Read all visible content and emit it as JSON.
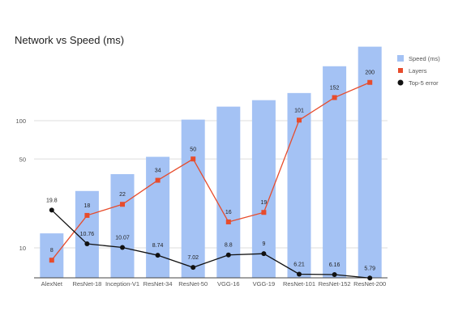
{
  "chart_data": {
    "type": "bar",
    "title": "Network vs Speed (ms)",
    "categories": [
      "AlexNet",
      "ResNet-18",
      "Inception-V1",
      "ResNet-34",
      "ResNet-50",
      "VGG-16",
      "VGG-19",
      "ResNet-101",
      "ResNet-152",
      "ResNet-200"
    ],
    "y_scale": "log",
    "yticks": [
      10,
      50,
      100
    ],
    "grid": true,
    "legend_position": "right",
    "series": [
      {
        "name": "Speed (ms)",
        "type": "bar",
        "color": "#a4c2f4",
        "values": [
          13,
          28,
          38,
          52,
          102,
          129,
          145,
          165,
          268,
          382
        ]
      },
      {
        "name": "Layers",
        "type": "line",
        "color": "#e74c2c",
        "marker": "square",
        "values": [
          8,
          18,
          22,
          34,
          50,
          16,
          19,
          101,
          152,
          200
        ],
        "labels": [
          "8",
          "18",
          "22",
          "34",
          "50",
          "16",
          "19",
          "101",
          "152",
          "200"
        ]
      },
      {
        "name": "Top-5 error",
        "type": "line",
        "color": "#111111",
        "marker": "circle",
        "values": [
          19.8,
          10.76,
          10.07,
          8.74,
          7.02,
          8.8,
          9,
          6.21,
          6.16,
          5.79
        ],
        "labels": [
          "19.8",
          "10.76",
          "10.07",
          "8.74",
          "7.02",
          "8.8",
          "9",
          "6.21",
          "6.16",
          "5.79"
        ]
      }
    ]
  }
}
